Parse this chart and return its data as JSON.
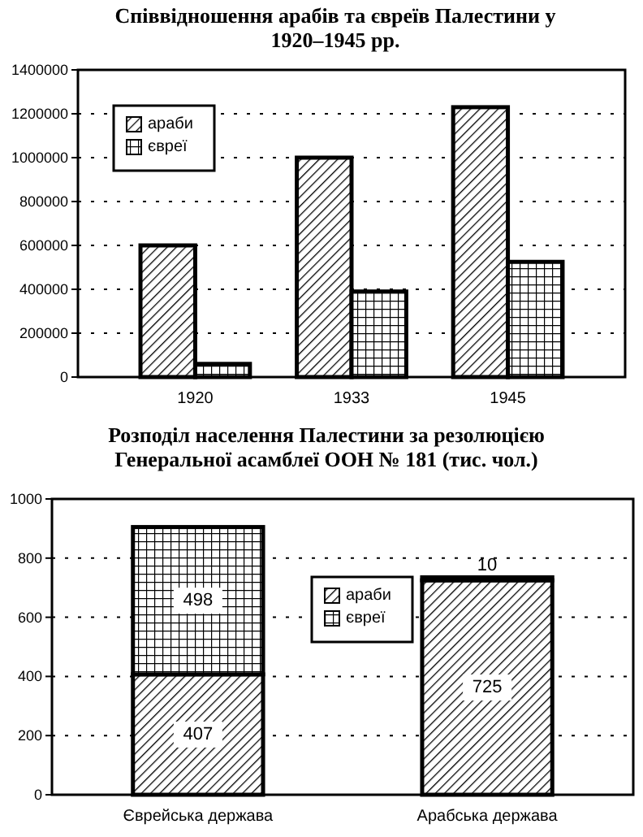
{
  "chart_data": [
    {
      "type": "bar",
      "title": "Співвідношення арабів та євреїв Палестини у 1920–1945 рр.",
      "categories": [
        "1920",
        "1933",
        "1945"
      ],
      "series": [
        {
          "name": "араби",
          "color": "#000000",
          "values": [
            600000,
            1000000,
            1230000
          ]
        },
        {
          "name": "євреї",
          "color": "#000000",
          "values": [
            60000,
            390000,
            525000
          ]
        }
      ],
      "ylim": [
        0,
        1400000
      ],
      "yticks": [
        0,
        200000,
        400000,
        600000,
        800000,
        1000000,
        1200000,
        1400000
      ],
      "grid": "y",
      "legend": "top left"
    },
    {
      "type": "bar",
      "title": "Розподіл населення Палестини за резолюцією Генеральної асамблеї ООН № 181 (тис. чол.)",
      "categories": [
        "Єврейська держава",
        "Арабська держава"
      ],
      "stacked": true,
      "series": [
        {
          "name": "араби",
          "color": "#000000",
          "values": [
            407,
            725
          ]
        },
        {
          "name": "євреї",
          "color": "#000000",
          "values": [
            498,
            10
          ]
        }
      ],
      "ylim": [
        0,
        1000
      ],
      "yticks": [
        0,
        200,
        400,
        600,
        800,
        1000
      ],
      "grid": "y",
      "legend": "top",
      "data_labels": true
    }
  ]
}
